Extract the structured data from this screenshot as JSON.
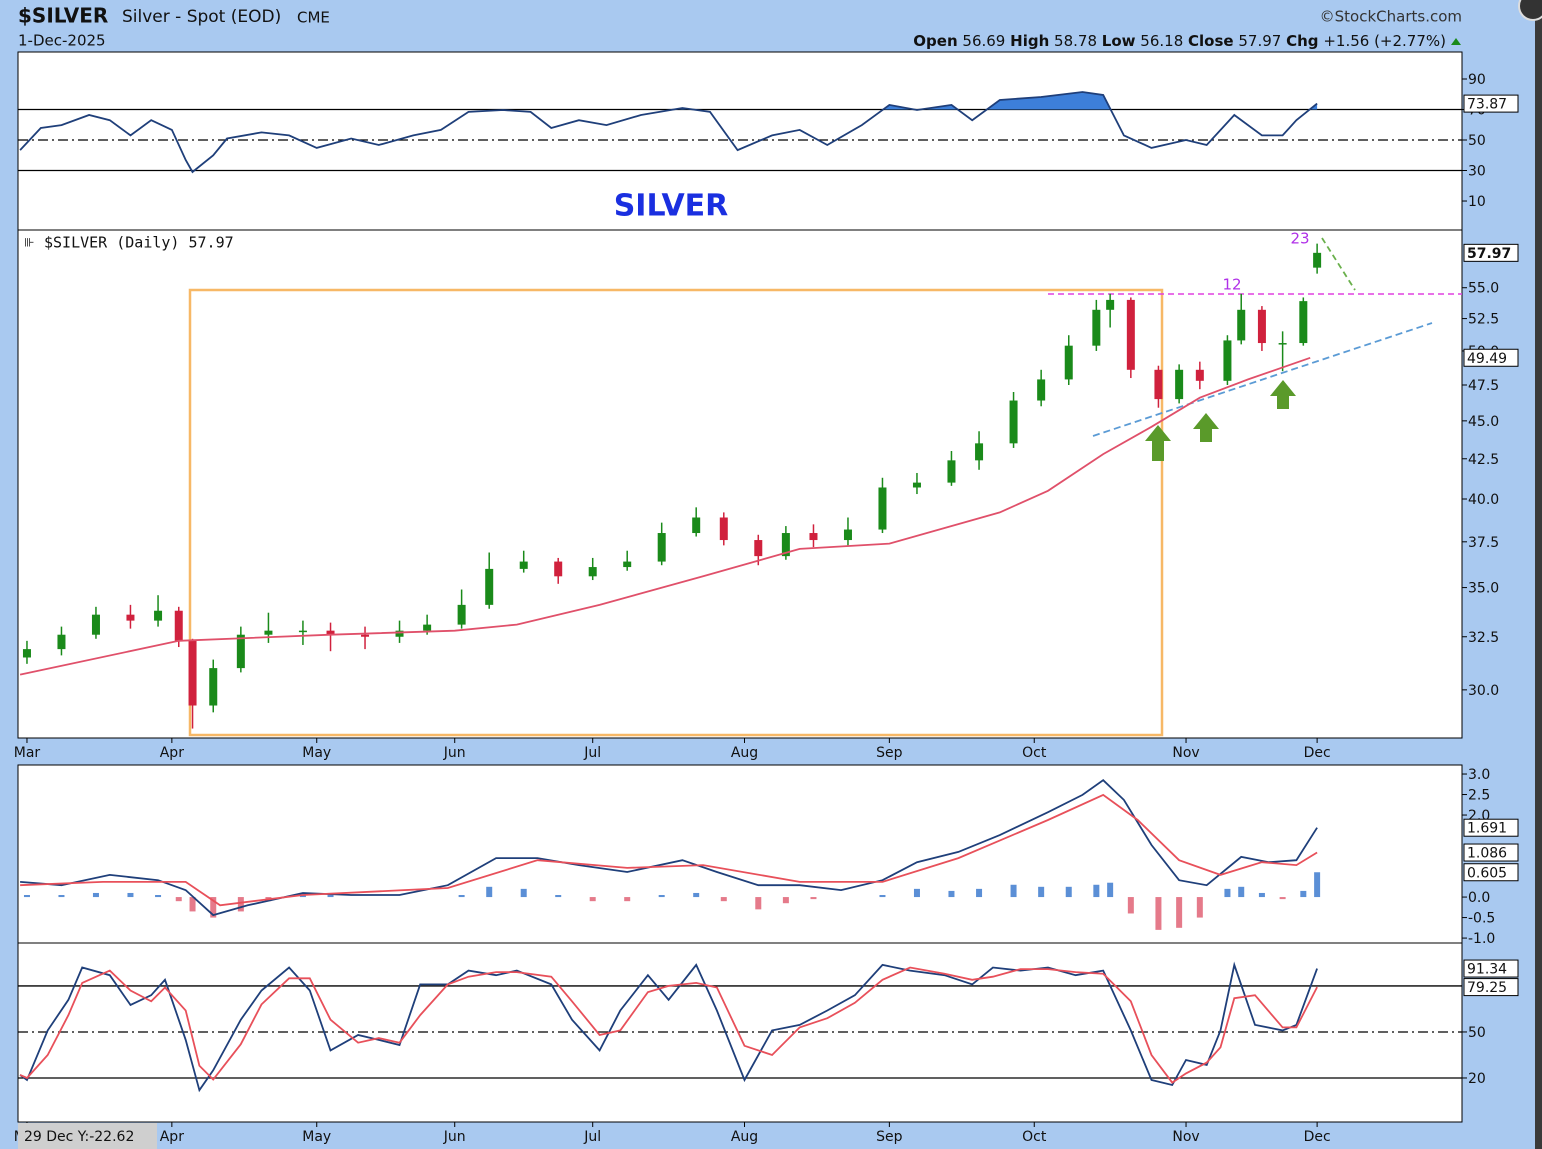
{
  "header": {
    "symbol": "$SILVER",
    "name": "Silver - Spot (EOD)",
    "exchange": "CME",
    "date": "1-Dec-2025",
    "source": "©StockCharts.com",
    "stats": [
      {
        "label": "Open",
        "value": "56.69"
      },
      {
        "label": "High",
        "value": "58.78"
      },
      {
        "label": "Low",
        "value": "56.18"
      },
      {
        "label": "Close",
        "value": "57.97"
      },
      {
        "label": "Chg",
        "value": "+1.56 (+2.77%)"
      }
    ],
    "crosshair_readout": "29 Dec Y:-22.62"
  },
  "chart_data": [
    {
      "type": "line",
      "xlim": [
        -1.3,
        208
      ],
      "ylim": [
        -9,
        107.7
      ],
      "yticks": [
        90,
        70,
        50,
        30,
        10
      ],
      "levels": [
        70,
        30
      ],
      "midline": 50,
      "x": [
        -1,
        2,
        5,
        9,
        12,
        15,
        18,
        21,
        23,
        24,
        27,
        29,
        34,
        38,
        42,
        47,
        51,
        56,
        60,
        64,
        69,
        73,
        76,
        80,
        84,
        89,
        95,
        99,
        103,
        108,
        112,
        116,
        121,
        125,
        129,
        134,
        137,
        141,
        147,
        153,
        156,
        159,
        163,
        168,
        171,
        175,
        179,
        182,
        184,
        187
      ],
      "series": [
        {
          "color": "#1f3f7a",
          "fill_color": "#3d7fd9",
          "fill_above": 70,
          "values": [
            43.4,
            57.9,
            59.8,
            66.4,
            63,
            53,
            63,
            56.6,
            36.9,
            29,
            40,
            51,
            55,
            53,
            44.8,
            51,
            46.7,
            53,
            56.6,
            68.4,
            69.7,
            68.4,
            57.9,
            63,
            59.8,
            66.4,
            71,
            68.4,
            43.4,
            53,
            56.6,
            46.7,
            59.8,
            73,
            69.7,
            73,
            63,
            76.2,
            78.2,
            81.5,
            79.5,
            53,
            44.8,
            50,
            46.7,
            66.4,
            53,
            53,
            63,
            73.87
          ]
        }
      ]
    },
    {
      "type": "candlestick",
      "title": "SILVER",
      "label": "$SILVER (Daily) 57.97",
      "annotations": [
        "12",
        "23"
      ],
      "xlim": [
        -1.3,
        208
      ],
      "ylim": [
        27.9,
        60.0
      ],
      "log_scale": true,
      "yticks": [
        {
          "value": 30,
          "label": "30.0"
        },
        {
          "value": 32.5,
          "label": "32.5"
        },
        {
          "value": 35,
          "label": "35.0"
        },
        {
          "value": 37.5,
          "label": "37.5"
        },
        {
          "value": 40,
          "label": "40.0"
        },
        {
          "value": 42.5,
          "label": "42.5"
        },
        {
          "value": 45,
          "label": "45.0"
        },
        {
          "value": 47.5,
          "label": "47.5"
        },
        {
          "value": 50,
          "label": "50.0"
        },
        {
          "value": 52.5,
          "label": "52.5"
        },
        {
          "value": 55,
          "label": "55.0"
        }
      ],
      "xticks": [
        {
          "value": 0,
          "label": "Mar"
        },
        {
          "value": 21,
          "label": "Apr"
        },
        {
          "value": 42,
          "label": "May"
        },
        {
          "value": 62,
          "label": "Jun"
        },
        {
          "value": 82,
          "label": "Jul"
        },
        {
          "value": 104,
          "label": "Aug"
        },
        {
          "value": 125,
          "label": "Sep"
        },
        {
          "value": 146,
          "label": "Oct"
        },
        {
          "value": 168,
          "label": "Nov"
        },
        {
          "value": 187,
          "label": "Dec"
        }
      ],
      "up_color": "#1a8a1a",
      "down_color": "#d0213d",
      "x": [
        0,
        5,
        10,
        15,
        19,
        22,
        24,
        27,
        31,
        35,
        40,
        44,
        49,
        54,
        58,
        63,
        67,
        72,
        77,
        82,
        87,
        92,
        97,
        101,
        106,
        110,
        114,
        119,
        124,
        129,
        134,
        138,
        143,
        147,
        151,
        155,
        157,
        160,
        164,
        167,
        170,
        174,
        176,
        179,
        182,
        185,
        187
      ],
      "open": [
        31.5,
        31.9,
        32.6,
        33.6,
        33.3,
        33.8,
        32.3,
        29.3,
        31.0,
        32.6,
        32.8,
        32.8,
        32.6,
        32.5,
        32.8,
        33.1,
        34.1,
        36.0,
        36.4,
        35.6,
        36.1,
        36.4,
        38.0,
        38.9,
        37.6,
        36.7,
        38.0,
        37.6,
        38.2,
        40.7,
        41.0,
        42.4,
        43.5,
        46.4,
        47.9,
        50.4,
        53.2,
        54.0,
        48.6,
        46.5,
        48.6,
        47.8,
        50.8,
        53.2,
        50.6,
        50.6,
        56.69
      ],
      "high": [
        32.3,
        33.0,
        34.0,
        34.1,
        34.6,
        34.0,
        32.4,
        31.4,
        33.0,
        33.7,
        33.3,
        33.2,
        33.0,
        33.3,
        33.6,
        34.9,
        36.9,
        37.0,
        36.6,
        36.6,
        37.0,
        38.6,
        39.5,
        39.2,
        37.9,
        38.4,
        38.5,
        38.9,
        41.3,
        41.6,
        43.0,
        44.3,
        47.0,
        48.6,
        51.2,
        54.0,
        54.5,
        54.2,
        48.9,
        49.0,
        49.2,
        51.2,
        54.5,
        53.5,
        51.5,
        54.2,
        58.78
      ],
      "low": [
        31.2,
        31.6,
        32.4,
        32.9,
        33.0,
        32.0,
        28.3,
        29.0,
        30.8,
        32.2,
        32.1,
        31.8,
        31.9,
        32.2,
        32.6,
        32.9,
        33.9,
        35.8,
        35.2,
        35.4,
        35.9,
        36.2,
        37.8,
        37.3,
        36.2,
        36.5,
        37.2,
        37.3,
        38.0,
        40.3,
        40.8,
        41.8,
        43.2,
        46.0,
        47.5,
        50.0,
        51.8,
        48.0,
        45.9,
        46.2,
        47.2,
        47.5,
        50.5,
        50.0,
        48.5,
        50.4,
        56.18
      ],
      "close": [
        31.9,
        32.6,
        33.6,
        33.3,
        33.8,
        32.3,
        29.3,
        31.0,
        32.6,
        32.8,
        32.8,
        32.6,
        32.5,
        32.8,
        33.1,
        34.1,
        36.0,
        36.4,
        35.6,
        36.1,
        36.4,
        38.0,
        38.9,
        37.6,
        36.7,
        38.0,
        37.6,
        38.2,
        40.7,
        41.0,
        42.4,
        43.5,
        46.4,
        47.9,
        50.4,
        53.2,
        54.0,
        48.6,
        46.5,
        48.6,
        47.8,
        50.8,
        53.2,
        50.6,
        50.6,
        53.9,
        57.97
      ],
      "series": [
        {
          "color": "#e0506a",
          "x": [
            -1,
            22,
            44,
            62,
            71,
            83,
            98,
            112,
            125,
            141,
            148,
            156,
            163,
            170,
            177,
            186
          ],
          "values": [
            30.7,
            32.3,
            32.6,
            32.8,
            33.1,
            34.1,
            35.6,
            37.1,
            37.4,
            39.2,
            40.5,
            42.8,
            44.6,
            46.6,
            47.9,
            49.49
          ]
        }
      ]
    },
    {
      "type": "line",
      "xlim": [
        -1.3,
        208
      ],
      "ylim": [
        -1.12,
        3.22
      ],
      "yticks": [
        {
          "value": 3,
          "label": "3.0"
        },
        2.5,
        {
          "value": 2,
          "label": "2.0"
        },
        {
          "value": 0,
          "label": "0.0"
        },
        -0.5,
        {
          "value": -1,
          "label": "-1.0"
        }
      ],
      "series": [
        {
          "type": "bar",
          "color": "#5b8fd6",
          "negative_color": "#e57a8a",
          "x": [
            0,
            5,
            10,
            15,
            19,
            22,
            24,
            27,
            31,
            35,
            40,
            44,
            49,
            54,
            58,
            63,
            67,
            72,
            77,
            82,
            87,
            92,
            97,
            101,
            106,
            110,
            114,
            119,
            124,
            129,
            134,
            138,
            143,
            147,
            151,
            155,
            157,
            160,
            164,
            167,
            170,
            174,
            176,
            179,
            182,
            185,
            187
          ],
          "values": [
            0.05,
            0.05,
            0.1,
            0.1,
            0.05,
            -0.1,
            -0.35,
            -0.5,
            -0.35,
            -0.1,
            0.1,
            0.1,
            0,
            0,
            0,
            0.05,
            0.25,
            0.2,
            0.05,
            -0.1,
            -0.1,
            0.05,
            0.1,
            -0.1,
            -0.3,
            -0.15,
            -0.05,
            0,
            0.05,
            0.2,
            0.15,
            0.2,
            0.3,
            0.25,
            0.25,
            0.3,
            0.35,
            -0.4,
            -0.8,
            -0.75,
            -0.5,
            0.2,
            0.25,
            0.1,
            -0.05,
            0.15,
            0.605
          ]
        },
        {
          "color": "#1f3f7a",
          "x": [
            -1,
            5,
            12,
            19,
            23,
            27,
            32,
            40,
            47,
            54,
            61,
            68,
            74,
            80,
            87,
            95,
            100,
            106,
            112,
            118,
            124,
            129,
            135,
            141,
            148,
            153,
            156,
            159,
            163,
            167,
            171,
            176,
            180,
            184,
            187
          ],
          "values": [
            0.37,
            0.29,
            0.54,
            0.41,
            0.17,
            -0.44,
            -0.2,
            0.1,
            0.05,
            0.05,
            0.29,
            0.95,
            0.95,
            0.78,
            0.61,
            0.9,
            0.61,
            0.29,
            0.29,
            0.17,
            0.41,
            0.85,
            1.1,
            1.51,
            2.07,
            2.49,
            2.85,
            2.37,
            1.27,
            0.41,
            0.29,
            0.98,
            0.85,
            0.9,
            1.691
          ]
        },
        {
          "color": "#e8505a",
          "x": [
            -1,
            11,
            23,
            28,
            40,
            61,
            74,
            87,
            98,
            112,
            124,
            135,
            148,
            156,
            161,
            167,
            173,
            179,
            184,
            187
          ],
          "values": [
            0.29,
            0.37,
            0.37,
            -0.2,
            0.05,
            0.22,
            0.9,
            0.71,
            0.78,
            0.37,
            0.37,
            0.95,
            1.88,
            2.49,
            1.88,
            0.9,
            0.54,
            0.85,
            0.78,
            1.086
          ]
        }
      ]
    },
    {
      "type": "line",
      "xlim": [
        -1.3,
        208
      ],
      "ylim": [
        -8.7,
        108
      ],
      "yticks": [
        50,
        20
      ],
      "levels": [
        80,
        20
      ],
      "midline": 50,
      "xticks": [
        {
          "value": 0,
          "label": "Mar"
        },
        {
          "value": 21,
          "label": "Apr"
        },
        {
          "value": 42,
          "label": "May"
        },
        {
          "value": 62,
          "label": "Jun"
        },
        {
          "value": 82,
          "label": "Jul"
        },
        {
          "value": 104,
          "label": "Aug"
        },
        {
          "value": 125,
          "label": "Sep"
        },
        {
          "value": 146,
          "label": "Oct"
        },
        {
          "value": 168,
          "label": "Nov"
        },
        {
          "value": 187,
          "label": "Dec"
        }
      ],
      "x": [
        -1,
        0,
        3,
        6,
        8,
        12,
        15,
        18,
        20,
        23,
        25,
        27,
        31,
        34,
        38,
        41,
        44,
        48,
        51,
        54,
        57,
        61,
        64,
        68,
        71,
        76,
        79,
        83,
        86,
        90,
        93,
        97,
        100,
        104,
        108,
        112,
        116,
        120,
        124,
        128,
        133,
        137,
        140,
        144,
        148,
        152,
        156,
        160,
        163,
        166,
        168,
        171,
        173,
        175,
        178,
        182,
        184,
        187
      ],
      "series": [
        {
          "color": "#1f3f7a",
          "values": [
            22,
            18.7,
            51,
            71,
            92,
            87,
            67.6,
            74,
            84,
            44.8,
            12,
            25,
            58,
            77,
            92,
            77,
            38,
            48,
            44.8,
            41.5,
            81,
            81,
            90,
            87,
            90,
            81,
            58,
            38,
            64,
            87,
            71,
            93.7,
            64,
            18.7,
            51,
            54.6,
            64,
            74,
            93.7,
            90,
            87,
            81,
            92,
            90,
            92,
            87,
            90,
            51,
            18.7,
            15.4,
            31.7,
            28.5,
            51,
            93.7,
            54.6,
            51,
            54.6,
            91.34
          ]
        },
        {
          "color": "#e8505a",
          "values": [
            22,
            20,
            35,
            61,
            82,
            90,
            77,
            70,
            79,
            64,
            28,
            19,
            42,
            68,
            85,
            85,
            58,
            43,
            46,
            43,
            61,
            81,
            86,
            89,
            89,
            86,
            70,
            48,
            51,
            76,
            80,
            82,
            79,
            41,
            35,
            53,
            59,
            69,
            84,
            92,
            88,
            84,
            86,
            91,
            91,
            89,
            88,
            70,
            35,
            17,
            23,
            30,
            40,
            72,
            74,
            53,
            53,
            79.25
          ]
        }
      ]
    }
  ]
}
